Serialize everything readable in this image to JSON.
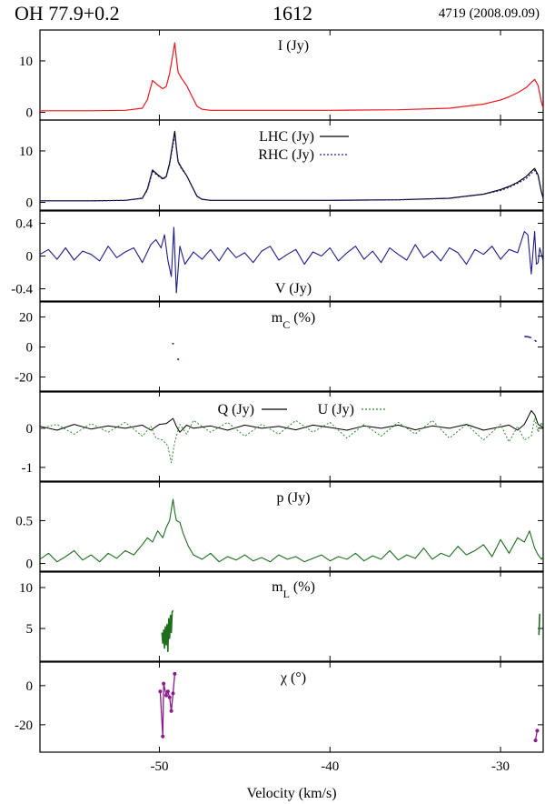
{
  "header": {
    "source": "OH 77.9+0.2",
    "line": "1612",
    "epoch": "4719 (2008.09.09)"
  },
  "x_axis": {
    "label": "Velocity (km/s)",
    "range": [
      -57,
      -27.5
    ],
    "ticks": [
      -50,
      -40,
      -30
    ],
    "tick_labels": [
      "-50",
      "-40",
      "-30"
    ]
  },
  "colors": {
    "I": "#e8191e",
    "LHC": "#000000",
    "RHC": "#1c1c8c",
    "V": "#1c1c8c",
    "mC": "#1c1c8c",
    "Q": "#000000",
    "U": "#2e8b2e",
    "p": "#1e6e1e",
    "mL": "#1e6e1e",
    "chi": "#8b1a8b"
  },
  "chart_data": [
    {
      "type": "line",
      "panel": "I",
      "label": "I (Jy)",
      "ylim": [
        -1.5,
        16
      ],
      "yticks": [
        0,
        10
      ],
      "series": [
        {
          "x": [
            -57,
            -54,
            -52,
            -51,
            -50.7,
            -50.4,
            -50.1,
            -49.8,
            -49.6,
            -49.4,
            -49.2,
            -49.1,
            -49.0,
            -48.9,
            -48.7,
            -48.4,
            -48.1,
            -47.8,
            -47.5,
            -47,
            -46,
            -44,
            -40,
            -36,
            -33,
            -31,
            -30,
            -29.5,
            -29,
            -28.5,
            -28.2,
            -28.0,
            -27.8,
            -27.6,
            -27.5
          ],
          "y": [
            0.3,
            0.3,
            0.4,
            0.8,
            2.5,
            6.2,
            5.3,
            4.6,
            5.0,
            7.5,
            11.5,
            13.5,
            10.5,
            7.8,
            6.6,
            5.2,
            3.2,
            1.2,
            0.6,
            0.4,
            0.4,
            0.4,
            0.4,
            0.5,
            0.8,
            1.6,
            2.4,
            3.0,
            3.8,
            4.8,
            5.8,
            6.4,
            5.2,
            2.0,
            0.8
          ]
        }
      ]
    },
    {
      "type": "line",
      "panel": "LHC_RHC",
      "ylim": [
        -1.5,
        16
      ],
      "yticks": [
        0,
        10
      ],
      "legend": [
        "LHC (Jy)",
        "RHC (Jy)"
      ],
      "series": [
        {
          "name": "LHC (Jy)",
          "x": [
            -57,
            -54,
            -52,
            -51,
            -50.7,
            -50.4,
            -50.1,
            -49.8,
            -49.6,
            -49.4,
            -49.2,
            -49.1,
            -49.0,
            -48.9,
            -48.7,
            -48.4,
            -48.1,
            -47.8,
            -47.5,
            -47,
            -46,
            -44,
            -40,
            -36,
            -33,
            -31,
            -30,
            -29.5,
            -29,
            -28.5,
            -28.2,
            -28.0,
            -27.8,
            -27.6,
            -27.5
          ],
          "y": [
            0.3,
            0.3,
            0.4,
            0.8,
            2.6,
            6.3,
            5.4,
            4.6,
            5.0,
            7.6,
            11.8,
            13.8,
            10.6,
            7.9,
            6.7,
            5.2,
            3.2,
            1.2,
            0.6,
            0.4,
            0.4,
            0.4,
            0.4,
            0.5,
            0.8,
            1.6,
            2.5,
            3.1,
            3.9,
            5.0,
            6.0,
            6.6,
            5.3,
            2.0,
            0.8
          ]
        },
        {
          "name": "RHC (Jy)",
          "x": [
            -57,
            -54,
            -52,
            -51,
            -50.7,
            -50.4,
            -50.1,
            -49.8,
            -49.6,
            -49.4,
            -49.2,
            -49.1,
            -49.0,
            -48.9,
            -48.7,
            -48.4,
            -48.1,
            -47.8,
            -47.5,
            -47,
            -46,
            -44,
            -40,
            -36,
            -33,
            -31,
            -30,
            -29.5,
            -29,
            -28.5,
            -28.2,
            -28.0,
            -27.8,
            -27.6,
            -27.5
          ],
          "y": [
            0.3,
            0.3,
            0.4,
            0.8,
            2.4,
            6.0,
            5.2,
            4.5,
            4.9,
            7.3,
            11.2,
            13.2,
            10.4,
            7.7,
            6.5,
            5.2,
            3.2,
            1.2,
            0.6,
            0.4,
            0.4,
            0.4,
            0.4,
            0.5,
            0.8,
            1.6,
            2.3,
            2.9,
            3.7,
            4.6,
            5.6,
            6.2,
            5.1,
            2.0,
            0.8
          ]
        }
      ]
    },
    {
      "type": "line",
      "panel": "V",
      "label": "V (Jy)",
      "ylim": [
        -0.55,
        0.55
      ],
      "yticks": [
        -0.4,
        0,
        0.4
      ],
      "series": [
        {
          "x": [
            -57,
            -56.5,
            -56,
            -55.5,
            -55,
            -54.5,
            -54,
            -53.5,
            -53,
            -52.5,
            -52,
            -51.5,
            -51,
            -50.5,
            -50.2,
            -49.9,
            -49.7,
            -49.5,
            -49.3,
            -49.15,
            -49.0,
            -48.8,
            -48.5,
            -48,
            -47.5,
            -47,
            -46.5,
            -46,
            -45.5,
            -45,
            -44.5,
            -44,
            -43.5,
            -43,
            -42.5,
            -42,
            -41.5,
            -41,
            -40.5,
            -40,
            -39.5,
            -39,
            -38.5,
            -38,
            -37.5,
            -37,
            -36.5,
            -36,
            -35.5,
            -35,
            -34.5,
            -34,
            -33.5,
            -33,
            -32.5,
            -32,
            -31.5,
            -31,
            -30.5,
            -30,
            -29.5,
            -29,
            -28.6,
            -28.4,
            -28.2,
            -28.0,
            -27.9,
            -27.8,
            -27.7,
            -27.5
          ],
          "y": [
            0.02,
            0.08,
            -0.04,
            0.1,
            -0.05,
            0.06,
            0.02,
            -0.06,
            0.12,
            -0.02,
            0.05,
            0.1,
            -0.08,
            0.14,
            0.2,
            0.1,
            0.26,
            -0.05,
            -0.25,
            0.35,
            -0.45,
            0.12,
            -0.1,
            0.05,
            -0.04,
            0.08,
            -0.06,
            0.1,
            -0.02,
            0.04,
            -0.08,
            0.06,
            0.12,
            -0.05,
            0.02,
            0.08,
            -0.1,
            0.05,
            0.0,
            0.1,
            -0.06,
            0.04,
            0.12,
            -0.04,
            0.06,
            -0.08,
            0.1,
            0.02,
            -0.05,
            0.14,
            -0.02,
            0.06,
            -0.06,
            0.1,
            0.04,
            -0.1,
            0.08,
            0.02,
            0.12,
            -0.04,
            0.08,
            0.04,
            0.3,
            0.26,
            -0.22,
            0.3,
            -0.1,
            -0.08,
            0.1,
            -0.06
          ]
        }
      ]
    },
    {
      "type": "line",
      "panel": "mC",
      "label": "m_C (%)",
      "ylim": [
        -30,
        30
      ],
      "yticks": [
        -20,
        0,
        20
      ],
      "series": [
        {
          "x": [
            -49.25,
            -49.15
          ],
          "y": [
            2.5,
            2.0
          ]
        },
        {
          "x": [
            -48.95,
            -48.85
          ],
          "y": [
            -8.0,
            -8.5
          ]
        },
        {
          "x": [
            -28.6,
            -28.4,
            -28.2
          ],
          "y": [
            7.0,
            6.8,
            6.2
          ]
        },
        {
          "x": [
            -28.0,
            -27.9
          ],
          "y": [
            4.5,
            3.5
          ]
        }
      ]
    },
    {
      "type": "line",
      "panel": "QU",
      "ylim": [
        -1.35,
        0.95
      ],
      "yticks": [
        -1,
        0
      ],
      "legend": [
        "Q (Jy)",
        "U (Jy)"
      ],
      "series": [
        {
          "name": "Q (Jy)",
          "x": [
            -57,
            -56,
            -55,
            -54,
            -53,
            -52,
            -51,
            -50.5,
            -50,
            -49.6,
            -49.2,
            -49.0,
            -48.8,
            -48.4,
            -48,
            -47,
            -46,
            -45,
            -44,
            -43,
            -42,
            -41,
            -40,
            -39,
            -38,
            -37,
            -36,
            -35,
            -34,
            -33,
            -32,
            -31,
            -30,
            -29.5,
            -29,
            -28.6,
            -28.2,
            -28.0,
            -27.8,
            -27.6,
            -27.5
          ],
          "y": [
            0.05,
            -0.05,
            0.1,
            -0.02,
            0.06,
            0.0,
            0.08,
            -0.05,
            0.1,
            0.12,
            0.25,
            0.05,
            -0.1,
            0.08,
            0.0,
            0.06,
            -0.05,
            0.08,
            0.0,
            0.05,
            -0.04,
            0.08,
            0.02,
            -0.05,
            0.06,
            0.0,
            0.08,
            -0.04,
            0.06,
            0.0,
            0.1,
            -0.05,
            0.04,
            0.08,
            -0.05,
            0.1,
            0.45,
            0.35,
            0.1,
            0.05,
            0.0
          ]
        },
        {
          "name": "U (Jy)",
          "x": [
            -57,
            -56,
            -55,
            -54,
            -53,
            -52,
            -51,
            -50.5,
            -50.2,
            -49.8,
            -49.5,
            -49.3,
            -49.1,
            -48.8,
            -48.4,
            -48,
            -47,
            -46,
            -45,
            -44,
            -43,
            -42,
            -41,
            -40,
            -39,
            -38,
            -37,
            -36,
            -35,
            -34,
            -33,
            -32,
            -31,
            -30,
            -29.5,
            -29,
            -28.6,
            -28.2,
            -28.0,
            -27.8,
            -27.6,
            -27.5
          ],
          "y": [
            0.0,
            0.1,
            -0.15,
            0.12,
            -0.1,
            0.15,
            -0.2,
            0.05,
            -0.25,
            -0.3,
            -0.45,
            -0.88,
            -0.35,
            0.1,
            -0.15,
            0.2,
            -0.1,
            0.15,
            -0.2,
            0.1,
            -0.15,
            0.2,
            -0.1,
            0.15,
            -0.25,
            0.1,
            -0.2,
            0.15,
            -0.15,
            0.2,
            -0.25,
            0.1,
            -0.3,
            0.1,
            -0.35,
            0.05,
            -0.3,
            -0.2,
            0.25,
            -0.1,
            0.15,
            0.05
          ]
        }
      ]
    },
    {
      "type": "line",
      "panel": "p",
      "label": "p (Jy)",
      "ylim": [
        -0.1,
        0.95
      ],
      "yticks": [
        0,
        0.5
      ],
      "series": [
        {
          "x": [
            -57,
            -56.5,
            -56,
            -55.5,
            -55,
            -54.5,
            -54,
            -53.5,
            -53,
            -52.5,
            -52,
            -51.5,
            -51,
            -50.7,
            -50.4,
            -50.1,
            -49.8,
            -49.6,
            -49.4,
            -49.2,
            -49.1,
            -49.0,
            -48.8,
            -48.6,
            -48.3,
            -48,
            -47.5,
            -47,
            -46.5,
            -46,
            -45.5,
            -45,
            -44.5,
            -44,
            -43.5,
            -43,
            -42.5,
            -42,
            -41.5,
            -41,
            -40.5,
            -40,
            -39.5,
            -39,
            -38.5,
            -38,
            -37.5,
            -37,
            -36.5,
            -36,
            -35.5,
            -35,
            -34.5,
            -34,
            -33.5,
            -33,
            -32.5,
            -32,
            -31.5,
            -31,
            -30.5,
            -30,
            -29.5,
            -29,
            -28.6,
            -28.3,
            -28.0,
            -27.8,
            -27.6,
            -27.5
          ],
          "y": [
            0.05,
            0.12,
            0.02,
            0.08,
            0.15,
            0.04,
            0.1,
            0.02,
            0.12,
            0.06,
            0.15,
            0.1,
            0.22,
            0.3,
            0.25,
            0.38,
            0.3,
            0.42,
            0.5,
            0.75,
            0.6,
            0.5,
            0.48,
            0.35,
            0.2,
            0.1,
            0.05,
            0.12,
            0.02,
            0.08,
            0.04,
            0.1,
            0.03,
            0.07,
            0.02,
            0.1,
            0.05,
            0.08,
            0.02,
            0.06,
            0.1,
            0.03,
            0.08,
            0.05,
            0.12,
            0.03,
            0.09,
            0.05,
            0.15,
            0.04,
            0.1,
            0.06,
            0.18,
            0.05,
            0.12,
            0.08,
            0.2,
            0.1,
            0.15,
            0.22,
            0.08,
            0.28,
            0.12,
            0.3,
            0.25,
            0.38,
            0.18,
            0.1,
            0.05,
            0.08
          ]
        }
      ]
    },
    {
      "type": "line",
      "panel": "mL",
      "label": "m_L (%)",
      "ylim": [
        1,
        12
      ],
      "yticks": [
        5,
        10
      ],
      "series": [
        {
          "x": [
            -49.85,
            -49.8,
            -49.75,
            -49.7,
            -49.65,
            -49.6,
            -49.55,
            -49.5,
            -49.45,
            -49.4,
            -49.35,
            -49.3,
            -49.25,
            -49.2
          ],
          "y": [
            4.5,
            3.2,
            4.8,
            2.6,
            5.2,
            3.0,
            5.5,
            2.2,
            6.2,
            3.8,
            6.6,
            4.5,
            7.0,
            7.2
          ]
        },
        {
          "x": [
            -27.75,
            -27.7
          ],
          "y": [
            4.2,
            6.8
          ]
        }
      ]
    },
    {
      "type": "line",
      "panel": "chi",
      "label": "χ (°)",
      "ylim": [
        -34,
        12
      ],
      "yticks": [
        -20,
        0
      ],
      "series": [
        {
          "x": [
            -49.95,
            -49.8,
            -49.75,
            -49.6,
            -49.5,
            -49.4,
            -49.3,
            -49.2,
            -49.1
          ],
          "y": [
            -3,
            -26,
            1,
            -5,
            -3,
            -6,
            -13,
            -4,
            6
          ]
        },
        {
          "x": [
            -27.95,
            -27.85
          ],
          "y": [
            -28,
            -23
          ]
        }
      ]
    }
  ]
}
